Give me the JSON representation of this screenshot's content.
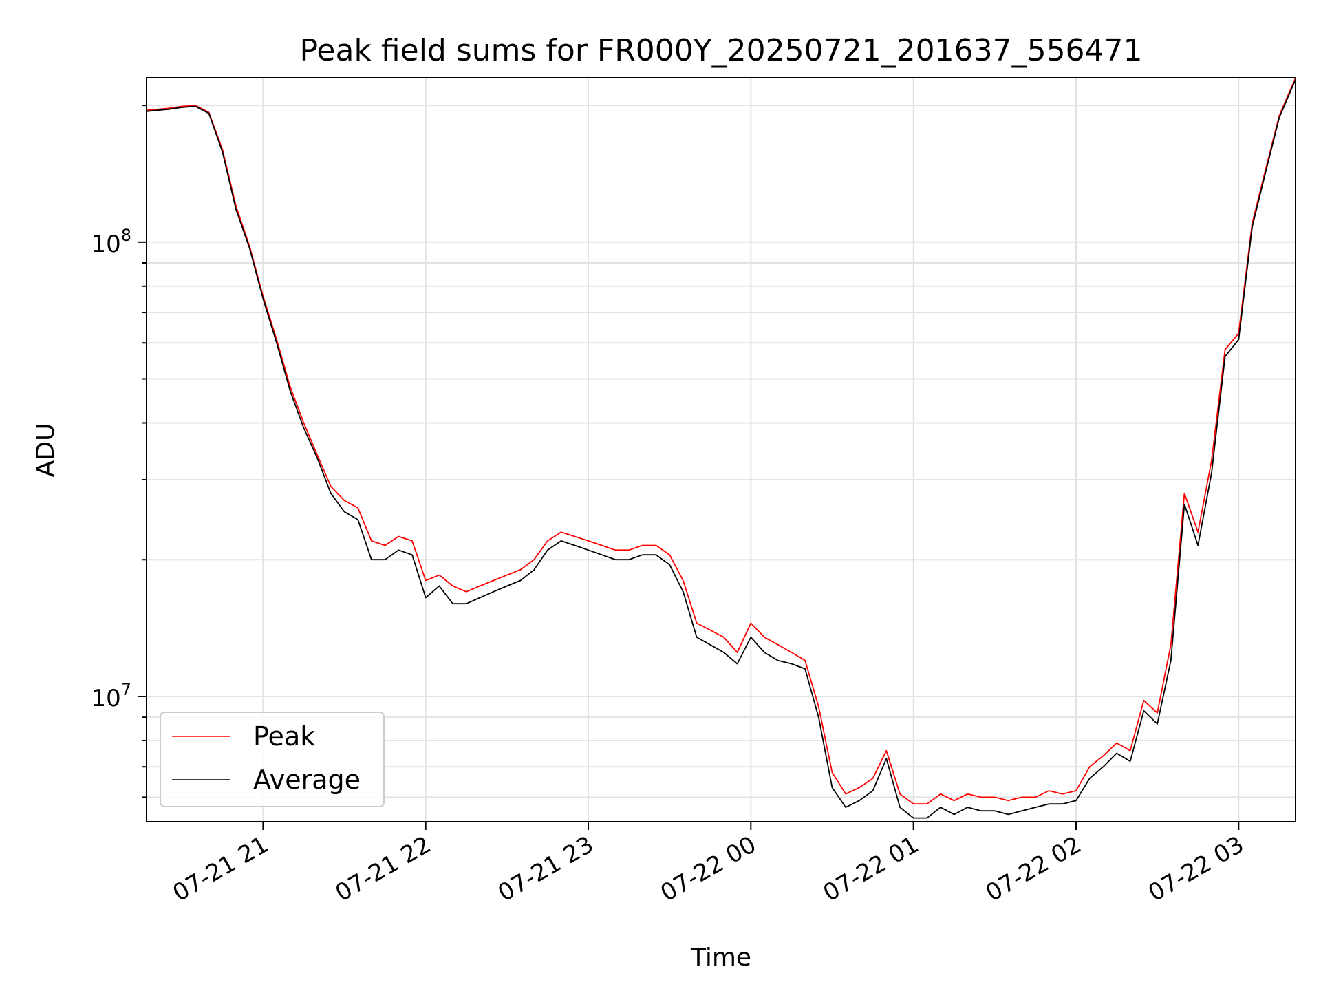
{
  "chart_data": {
    "type": "line",
    "title": "Peak field sums for FR000Y_20250721_201637_556471",
    "xlabel": "Time",
    "ylabel": "ADU",
    "yscale": "log",
    "ylim": [
      5300000,
      230000000
    ],
    "xlim": [
      "2025-07-21 20:17",
      "2025-07-22 03:21"
    ],
    "grid": true,
    "legend_position": "lower-left",
    "x_ticks": [
      {
        "value": "2025-07-21 21:00",
        "label": "07-21 21"
      },
      {
        "value": "2025-07-21 22:00",
        "label": "07-21 22"
      },
      {
        "value": "2025-07-21 23:00",
        "label": "07-21 23"
      },
      {
        "value": "2025-07-22 00:00",
        "label": "07-22 00"
      },
      {
        "value": "2025-07-22 01:00",
        "label": "07-22 01"
      },
      {
        "value": "2025-07-22 02:00",
        "label": "07-22 02"
      },
      {
        "value": "2025-07-22 03:00",
        "label": "07-22 03"
      }
    ],
    "y_ticks": [
      {
        "value": 10000000,
        "base": "10",
        "exp": "7"
      },
      {
        "value": 100000000,
        "base": "10",
        "exp": "8"
      }
    ],
    "series": [
      {
        "name": "Peak",
        "color": "#ff0000",
        "x": [
          "2025-07-21 20:17",
          "2025-07-21 20:25",
          "2025-07-21 20:30",
          "2025-07-21 20:35",
          "2025-07-21 20:40",
          "2025-07-21 20:45",
          "2025-07-21 20:50",
          "2025-07-21 20:55",
          "2025-07-21 21:00",
          "2025-07-21 21:05",
          "2025-07-21 21:10",
          "2025-07-21 21:15",
          "2025-07-21 21:20",
          "2025-07-21 21:25",
          "2025-07-21 21:30",
          "2025-07-21 21:35",
          "2025-07-21 21:40",
          "2025-07-21 21:45",
          "2025-07-21 21:50",
          "2025-07-21 21:55",
          "2025-07-21 22:00",
          "2025-07-21 22:05",
          "2025-07-21 22:10",
          "2025-07-21 22:15",
          "2025-07-21 22:20",
          "2025-07-21 22:25",
          "2025-07-21 22:30",
          "2025-07-21 22:35",
          "2025-07-21 22:40",
          "2025-07-21 22:45",
          "2025-07-21 22:50",
          "2025-07-21 22:55",
          "2025-07-21 23:00",
          "2025-07-21 23:05",
          "2025-07-21 23:10",
          "2025-07-21 23:15",
          "2025-07-21 23:20",
          "2025-07-21 23:25",
          "2025-07-21 23:30",
          "2025-07-21 23:35",
          "2025-07-21 23:40",
          "2025-07-21 23:45",
          "2025-07-21 23:50",
          "2025-07-21 23:55",
          "2025-07-22 00:00",
          "2025-07-22 00:05",
          "2025-07-22 00:10",
          "2025-07-22 00:15",
          "2025-07-22 00:20",
          "2025-07-22 00:25",
          "2025-07-22 00:30",
          "2025-07-22 00:35",
          "2025-07-22 00:40",
          "2025-07-22 00:45",
          "2025-07-22 00:50",
          "2025-07-22 00:55",
          "2025-07-22 01:00",
          "2025-07-22 01:05",
          "2025-07-22 01:10",
          "2025-07-22 01:15",
          "2025-07-22 01:20",
          "2025-07-22 01:25",
          "2025-07-22 01:30",
          "2025-07-22 01:35",
          "2025-07-22 01:40",
          "2025-07-22 01:45",
          "2025-07-22 01:50",
          "2025-07-22 01:55",
          "2025-07-22 02:00",
          "2025-07-22 02:05",
          "2025-07-22 02:10",
          "2025-07-22 02:15",
          "2025-07-22 02:20",
          "2025-07-22 02:25",
          "2025-07-22 02:30",
          "2025-07-22 02:35",
          "2025-07-22 02:40",
          "2025-07-22 02:45",
          "2025-07-22 02:50",
          "2025-07-22 02:55",
          "2025-07-22 03:00",
          "2025-07-22 03:05",
          "2025-07-22 03:10",
          "2025-07-22 03:15",
          "2025-07-22 03:21"
        ],
        "y": [
          195000000,
          197000000,
          199000000,
          200000000,
          193000000,
          160000000,
          120000000,
          98000000,
          76000000,
          61000000,
          48000000,
          40000000,
          34000000,
          29000000,
          27000000,
          26000000,
          22000000,
          21500000,
          22500000,
          22000000,
          18000000,
          18500000,
          17500000,
          17000000,
          17500000,
          18000000,
          18500000,
          19000000,
          20000000,
          22000000,
          23000000,
          22500000,
          22000000,
          21500000,
          21000000,
          21000000,
          21500000,
          21500000,
          20500000,
          18000000,
          14500000,
          14000000,
          13500000,
          12500000,
          14500000,
          13500000,
          13000000,
          12500000,
          12000000,
          9500000,
          6800000,
          6100000,
          6300000,
          6600000,
          7600000,
          6100000,
          5800000,
          5800000,
          6100000,
          5900000,
          6100000,
          6000000,
          6000000,
          5900000,
          6000000,
          6000000,
          6200000,
          6100000,
          6200000,
          7000000,
          7400000,
          7900000,
          7600000,
          9800000,
          9200000,
          13000000,
          28000000,
          23000000,
          33000000,
          58000000,
          63000000,
          110000000,
          145000000,
          190000000,
          230000000
        ]
      },
      {
        "name": "Average",
        "color": "#000000",
        "x": [
          "2025-07-21 20:17",
          "2025-07-21 20:25",
          "2025-07-21 20:30",
          "2025-07-21 20:35",
          "2025-07-21 20:40",
          "2025-07-21 20:45",
          "2025-07-21 20:50",
          "2025-07-21 20:55",
          "2025-07-21 21:00",
          "2025-07-21 21:05",
          "2025-07-21 21:10",
          "2025-07-21 21:15",
          "2025-07-21 21:20",
          "2025-07-21 21:25",
          "2025-07-21 21:30",
          "2025-07-21 21:35",
          "2025-07-21 21:40",
          "2025-07-21 21:45",
          "2025-07-21 21:50",
          "2025-07-21 21:55",
          "2025-07-21 22:00",
          "2025-07-21 22:05",
          "2025-07-21 22:10",
          "2025-07-21 22:15",
          "2025-07-21 22:20",
          "2025-07-21 22:25",
          "2025-07-21 22:30",
          "2025-07-21 22:35",
          "2025-07-21 22:40",
          "2025-07-21 22:45",
          "2025-07-21 22:50",
          "2025-07-21 22:55",
          "2025-07-21 23:00",
          "2025-07-21 23:05",
          "2025-07-21 23:10",
          "2025-07-21 23:15",
          "2025-07-21 23:20",
          "2025-07-21 23:25",
          "2025-07-21 23:30",
          "2025-07-21 23:35",
          "2025-07-21 23:40",
          "2025-07-21 23:45",
          "2025-07-21 23:50",
          "2025-07-21 23:55",
          "2025-07-22 00:00",
          "2025-07-22 00:05",
          "2025-07-22 00:10",
          "2025-07-22 00:15",
          "2025-07-22 00:20",
          "2025-07-22 00:25",
          "2025-07-22 00:30",
          "2025-07-22 00:35",
          "2025-07-22 00:40",
          "2025-07-22 00:45",
          "2025-07-22 00:50",
          "2025-07-22 00:55",
          "2025-07-22 01:00",
          "2025-07-22 01:05",
          "2025-07-22 01:10",
          "2025-07-22 01:15",
          "2025-07-22 01:20",
          "2025-07-22 01:25",
          "2025-07-22 01:30",
          "2025-07-22 01:35",
          "2025-07-22 01:40",
          "2025-07-22 01:45",
          "2025-07-22 01:50",
          "2025-07-22 01:55",
          "2025-07-22 02:00",
          "2025-07-22 02:05",
          "2025-07-22 02:10",
          "2025-07-22 02:15",
          "2025-07-22 02:20",
          "2025-07-22 02:25",
          "2025-07-22 02:30",
          "2025-07-22 02:35",
          "2025-07-22 02:40",
          "2025-07-22 02:45",
          "2025-07-22 02:50",
          "2025-07-22 02:55",
          "2025-07-22 03:00",
          "2025-07-22 03:05",
          "2025-07-22 03:10",
          "2025-07-22 03:15",
          "2025-07-22 03:21"
        ],
        "y": [
          194000000,
          196000000,
          198000000,
          199000000,
          192000000,
          158000000,
          118000000,
          97000000,
          75000000,
          60000000,
          47000000,
          39000000,
          33500000,
          28000000,
          25500000,
          24500000,
          20000000,
          20000000,
          21000000,
          20500000,
          16500000,
          17500000,
          16000000,
          16000000,
          16500000,
          17000000,
          17500000,
          18000000,
          19000000,
          21000000,
          22000000,
          21500000,
          21000000,
          20500000,
          20000000,
          20000000,
          20500000,
          20500000,
          19500000,
          17000000,
          13500000,
          13000000,
          12500000,
          11800000,
          13500000,
          12500000,
          12000000,
          11800000,
          11500000,
          9000000,
          6300000,
          5700000,
          5900000,
          6200000,
          7300000,
          5700000,
          5400000,
          5400000,
          5700000,
          5500000,
          5700000,
          5600000,
          5600000,
          5500000,
          5600000,
          5700000,
          5800000,
          5800000,
          5900000,
          6600000,
          7000000,
          7500000,
          7200000,
          9300000,
          8700000,
          12000000,
          26500000,
          21500000,
          31000000,
          56000000,
          61000000,
          108000000,
          143000000,
          188000000,
          228000000
        ]
      }
    ]
  }
}
